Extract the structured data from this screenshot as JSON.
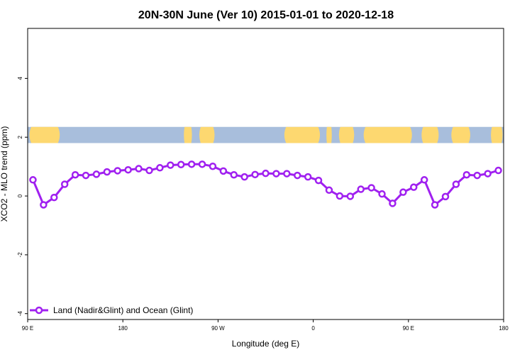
{
  "chart_data": {
    "type": "line",
    "title": "20N-30N June (Ver 10)   2015-01-01 to 2020-12-18",
    "xlabel": "Longitude (deg E)",
    "ylabel": "XCO2 - MLO trend (ppm)",
    "xlim": [
      90,
      540
    ],
    "ylim": [
      -4.2,
      5.7
    ],
    "x_ticks": [
      {
        "value": 90,
        "label": "90 E"
      },
      {
        "value": 180,
        "label": "180"
      },
      {
        "value": 270,
        "label": "90 W"
      },
      {
        "value": 360,
        "label": "0"
      },
      {
        "value": 450,
        "label": "90 E"
      },
      {
        "value": 540,
        "label": "180"
      }
    ],
    "y_ticks": [
      {
        "value": -4,
        "label": "-4"
      },
      {
        "value": -2,
        "label": "-2"
      },
      {
        "value": 0,
        "label": "0"
      },
      {
        "value": 2,
        "label": "2"
      },
      {
        "value": 4,
        "label": "4"
      }
    ],
    "legend": {
      "position": "bottom-left"
    },
    "colors": {
      "series": "#a020f0",
      "land": "#fdd870",
      "ocean": "#a8bedc"
    },
    "series": [
      {
        "name": "Land (Nadir&Glint) and Ocean (Glint)",
        "x": [
          95,
          105,
          115,
          125,
          135,
          145,
          155,
          165,
          175,
          185,
          195,
          205,
          215,
          225,
          235,
          245,
          255,
          265,
          275,
          285,
          295,
          305,
          315,
          325,
          335,
          345,
          355,
          365,
          375,
          385,
          395,
          405,
          415,
          425,
          435,
          445,
          455,
          465,
          475,
          485,
          495,
          505,
          515,
          525,
          535
        ],
        "values": [
          0.55,
          -0.3,
          -0.05,
          0.4,
          0.72,
          0.7,
          0.74,
          0.82,
          0.86,
          0.89,
          0.93,
          0.87,
          0.96,
          1.05,
          1.07,
          1.08,
          1.08,
          1.01,
          0.85,
          0.72,
          0.65,
          0.73,
          0.77,
          0.76,
          0.76,
          0.7,
          0.65,
          0.53,
          0.2,
          0.0,
          -0.01,
          0.23,
          0.28,
          0.07,
          -0.25,
          0.13,
          0.3,
          0.55,
          -0.3,
          -0.02,
          0.4,
          0.72,
          0.7,
          0.76,
          0.87
        ]
      }
    ],
    "map_strip": {
      "y_range": [
        1.8,
        2.35
      ],
      "land_lon_ranges": [
        [
          90,
          122
        ],
        [
          237,
          246
        ],
        [
          251,
          268
        ],
        [
          331,
          368
        ],
        [
          372,
          378
        ],
        [
          383,
          400
        ],
        [
          406,
          455
        ],
        [
          461,
          480
        ],
        [
          489,
          510
        ],
        [
          527,
          540
        ]
      ]
    }
  }
}
